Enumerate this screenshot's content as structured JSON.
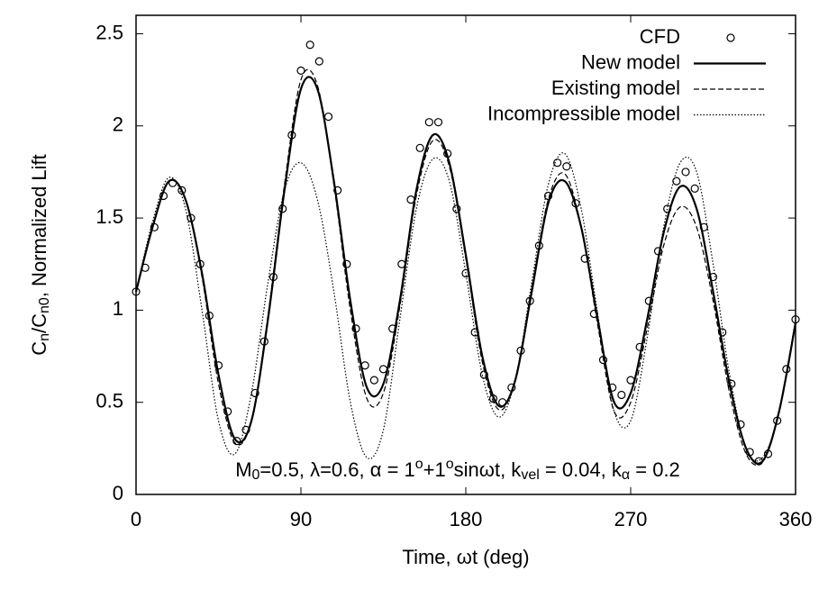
{
  "chart_data": {
    "type": "line",
    "xlabel": "Time, ωt (deg)",
    "ylabel_parts": [
      {
        "text": "C",
        "style": "normal"
      },
      {
        "text": "n",
        "style": "sub"
      },
      {
        "text": "/C",
        "style": "normal"
      },
      {
        "text": "n0",
        "style": "sub"
      },
      {
        "text": ", Normalized Lift",
        "style": "normal"
      }
    ],
    "annotation_parts": [
      {
        "text": "M",
        "style": "normal"
      },
      {
        "text": "0",
        "style": "sub"
      },
      {
        "text": "=0.5, λ=0.6, α = 1",
        "style": "normal"
      },
      {
        "text": "o",
        "style": "sup"
      },
      {
        "text": "+1",
        "style": "normal"
      },
      {
        "text": "o",
        "style": "sup"
      },
      {
        "text": "sinωt, k",
        "style": "normal"
      },
      {
        "text": "vel",
        "style": "sub"
      },
      {
        "text": " = 0.04, k",
        "style": "normal"
      },
      {
        "text": "α",
        "style": "sub"
      },
      {
        "text": " = 0.2",
        "style": "normal"
      }
    ],
    "xlim": [
      0,
      360
    ],
    "xticks": [
      0,
      90,
      180,
      270,
      360
    ],
    "ylim": [
      0,
      2.6
    ],
    "yticks": [
      0,
      0.5,
      1,
      1.5,
      2,
      2.5
    ],
    "grid": false,
    "legend": "top-right",
    "series": [
      {
        "name": "CFD",
        "color": "#000000",
        "style": "markers",
        "x": [
          0,
          5,
          10,
          15,
          20,
          25,
          30,
          35,
          40,
          45,
          50,
          55,
          60,
          65,
          70,
          75,
          80,
          85,
          90,
          95,
          100,
          105,
          110,
          115,
          120,
          125,
          130,
          135,
          140,
          145,
          150,
          155,
          160,
          165,
          170,
          175,
          180,
          185,
          190,
          195,
          200,
          205,
          210,
          215,
          220,
          225,
          230,
          235,
          240,
          245,
          250,
          255,
          260,
          265,
          270,
          275,
          280,
          285,
          290,
          295,
          300,
          305,
          310,
          315,
          320,
          325,
          330,
          335,
          340,
          345,
          350,
          355,
          360
        ],
        "values": [
          1.1,
          1.23,
          1.45,
          1.62,
          1.69,
          1.65,
          1.5,
          1.25,
          0.97,
          0.7,
          0.45,
          0.29,
          0.35,
          0.55,
          0.83,
          1.18,
          1.55,
          1.95,
          2.3,
          2.44,
          2.35,
          2.05,
          1.65,
          1.25,
          0.9,
          0.7,
          0.62,
          0.68,
          0.9,
          1.25,
          1.6,
          1.88,
          2.02,
          2.02,
          1.85,
          1.55,
          1.2,
          0.88,
          0.65,
          0.52,
          0.5,
          0.58,
          0.78,
          1.05,
          1.35,
          1.62,
          1.8,
          1.78,
          1.58,
          1.28,
          0.98,
          0.73,
          0.58,
          0.54,
          0.62,
          0.8,
          1.05,
          1.32,
          1.55,
          1.7,
          1.75,
          1.66,
          1.45,
          1.18,
          0.88,
          0.6,
          0.38,
          0.23,
          0.18,
          0.22,
          0.4,
          0.68,
          0.95
        ]
      },
      {
        "name": "New model",
        "color": "#000000",
        "style": "solid",
        "x": [
          0,
          9,
          18,
          27,
          36,
          45,
          54,
          63,
          72,
          81,
          90,
          99,
          108,
          117,
          126,
          135,
          144,
          153,
          162,
          171,
          180,
          189,
          198,
          207,
          216,
          225,
          234,
          243,
          252,
          261,
          270,
          279,
          288,
          297,
          306,
          315,
          324,
          333,
          342,
          351,
          360
        ],
        "values": [
          1.1,
          1.45,
          1.7,
          1.6,
          1.2,
          0.65,
          0.3,
          0.4,
          0.95,
          1.65,
          2.2,
          2.2,
          1.7,
          1.05,
          0.58,
          0.6,
          1.05,
          1.65,
          1.95,
          1.8,
          1.3,
          0.75,
          0.48,
          0.62,
          1.1,
          1.58,
          1.7,
          1.45,
          0.95,
          0.5,
          0.55,
          0.95,
          1.42,
          1.67,
          1.55,
          1.1,
          0.6,
          0.25,
          0.18,
          0.45,
          0.93
        ]
      },
      {
        "name": "Existing model",
        "color": "#000000",
        "style": "dashed",
        "x": [
          0,
          9,
          18,
          27,
          36,
          45,
          54,
          63,
          72,
          81,
          90,
          99,
          108,
          117,
          126,
          135,
          144,
          153,
          162,
          171,
          180,
          189,
          198,
          207,
          216,
          225,
          234,
          243,
          252,
          261,
          270,
          279,
          288,
          297,
          306,
          315,
          324,
          333,
          342,
          351,
          360
        ],
        "values": [
          1.1,
          1.45,
          1.7,
          1.6,
          1.18,
          0.6,
          0.28,
          0.4,
          0.97,
          1.68,
          2.25,
          2.22,
          1.68,
          1.0,
          0.52,
          0.55,
          1.02,
          1.62,
          1.92,
          1.78,
          1.28,
          0.72,
          0.46,
          0.62,
          1.12,
          1.6,
          1.74,
          1.45,
          0.92,
          0.45,
          0.5,
          0.9,
          1.35,
          1.56,
          1.45,
          1.05,
          0.55,
          0.22,
          0.18,
          0.45,
          0.93
        ]
      },
      {
        "name": "Incompressible model",
        "color": "#000000",
        "style": "dotted",
        "x": [
          0,
          9,
          18,
          27,
          36,
          45,
          54,
          63,
          72,
          81,
          90,
          99,
          108,
          117,
          126,
          135,
          144,
          153,
          162,
          171,
          180,
          189,
          198,
          207,
          216,
          225,
          234,
          243,
          252,
          261,
          270,
          279,
          288,
          297,
          306,
          315,
          324,
          333,
          342,
          351,
          360
        ],
        "values": [
          1.1,
          1.48,
          1.72,
          1.55,
          1.0,
          0.4,
          0.22,
          0.55,
          1.15,
          1.65,
          1.8,
          1.6,
          1.1,
          0.5,
          0.2,
          0.35,
          0.95,
          1.55,
          1.82,
          1.7,
          1.2,
          0.65,
          0.42,
          0.62,
          1.15,
          1.68,
          1.85,
          1.55,
          0.98,
          0.45,
          0.4,
          0.85,
          1.45,
          1.8,
          1.75,
          1.25,
          0.65,
          0.25,
          0.2,
          0.45,
          0.95
        ]
      }
    ]
  }
}
